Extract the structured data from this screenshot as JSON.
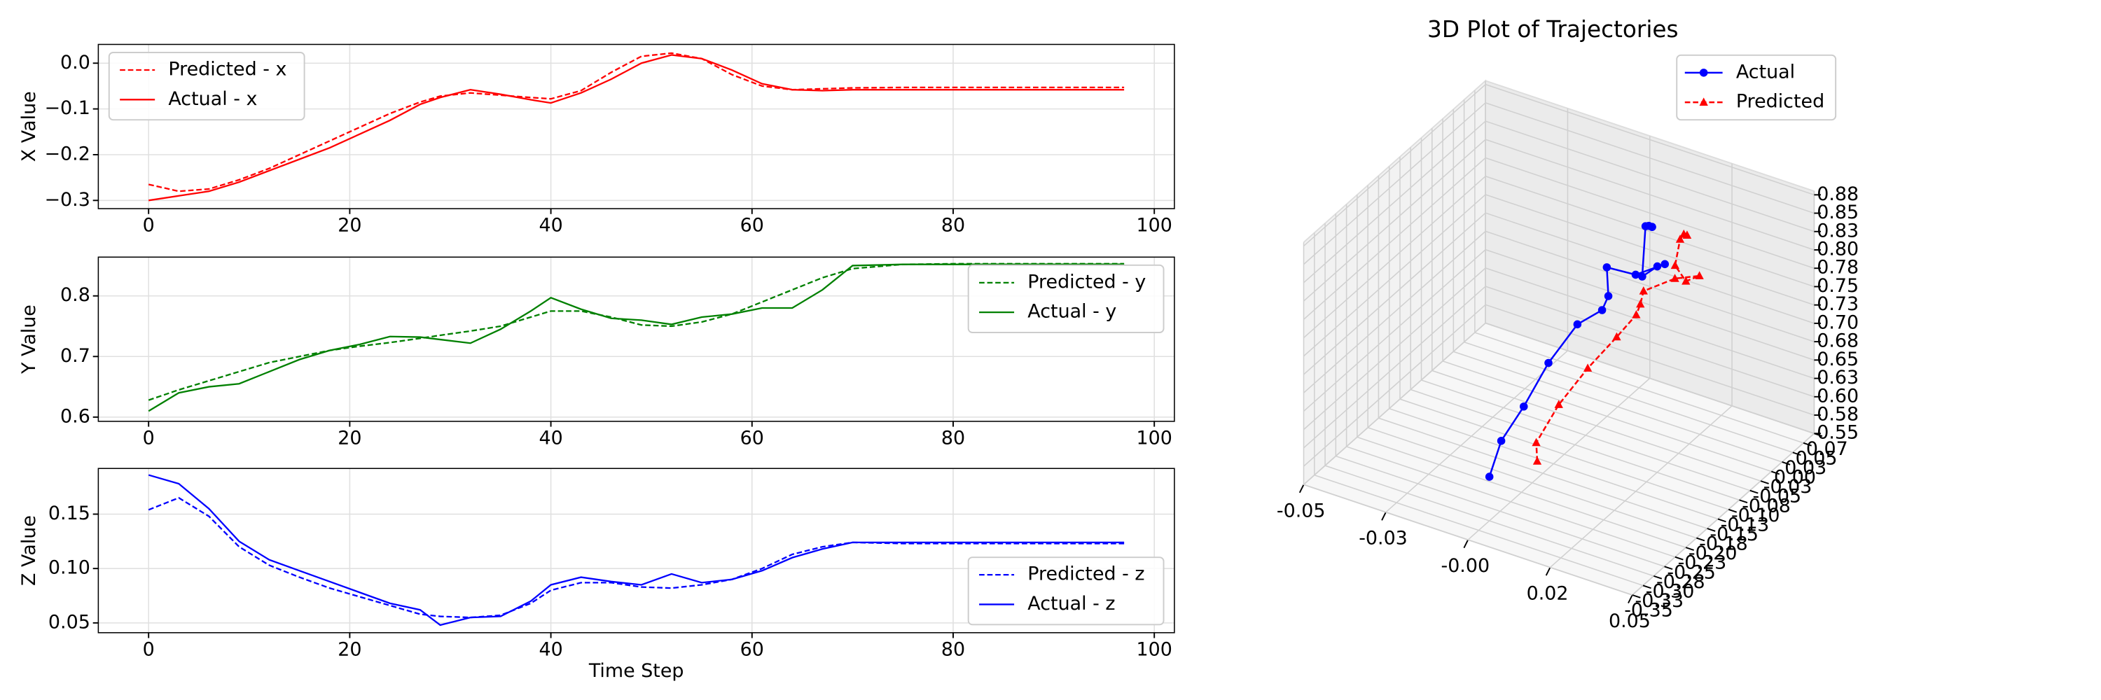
{
  "chart_data": [
    {
      "type": "line",
      "ylabel": "X Value",
      "x": [
        0,
        3,
        6,
        9,
        12,
        15,
        18,
        21,
        24,
        27,
        29,
        32,
        35,
        38,
        40,
        43,
        46,
        49,
        52,
        55,
        58,
        61,
        64,
        67,
        70,
        75,
        80,
        85,
        90,
        97
      ],
      "series": [
        {
          "name": "Predicted - x",
          "color": "#ff0000",
          "linestyle": "dashed",
          "values": [
            -0.265,
            -0.28,
            -0.275,
            -0.255,
            -0.23,
            -0.2,
            -0.17,
            -0.14,
            -0.11,
            -0.085,
            -0.072,
            -0.065,
            -0.07,
            -0.075,
            -0.078,
            -0.06,
            -0.02,
            0.015,
            0.022,
            0.01,
            -0.025,
            -0.05,
            -0.058,
            -0.056,
            -0.054,
            -0.053,
            -0.053,
            -0.053,
            -0.053,
            -0.053
          ]
        },
        {
          "name": "Actual - x",
          "color": "#ff0000",
          "linestyle": "solid",
          "values": [
            -0.3,
            -0.29,
            -0.28,
            -0.26,
            -0.235,
            -0.21,
            -0.185,
            -0.155,
            -0.125,
            -0.09,
            -0.075,
            -0.058,
            -0.068,
            -0.08,
            -0.087,
            -0.065,
            -0.035,
            0.0,
            0.018,
            0.01,
            -0.015,
            -0.045,
            -0.058,
            -0.06,
            -0.058,
            -0.058,
            -0.058,
            -0.058,
            -0.058,
            -0.058
          ]
        }
      ],
      "xlim": [
        -5,
        102
      ],
      "ylim": [
        -0.318,
        0.041
      ],
      "xticks": [
        0,
        20,
        40,
        60,
        80,
        100
      ],
      "yticks": [
        {
          "value": -0.3,
          "label": "−0.3"
        },
        {
          "value": -0.2,
          "label": "−0.2"
        },
        {
          "value": -0.1,
          "label": "−0.1"
        },
        {
          "value": 0,
          "label": "0.0"
        }
      ],
      "grid": true,
      "legend": "upper left"
    },
    {
      "type": "line",
      "ylabel": "Y Value",
      "x": [
        0,
        3,
        6,
        9,
        12,
        15,
        18,
        21,
        24,
        27,
        29,
        32,
        35,
        38,
        40,
        43,
        46,
        49,
        52,
        55,
        58,
        61,
        64,
        67,
        70,
        75,
        80,
        85,
        90,
        97
      ],
      "series": [
        {
          "name": "Predicted - y",
          "color": "#008000",
          "linestyle": "dashed",
          "values": [
            0.628,
            0.645,
            0.66,
            0.675,
            0.69,
            0.7,
            0.71,
            0.717,
            0.723,
            0.73,
            0.735,
            0.742,
            0.75,
            0.765,
            0.775,
            0.775,
            0.765,
            0.752,
            0.75,
            0.757,
            0.77,
            0.79,
            0.81,
            0.83,
            0.845,
            0.852,
            0.853,
            0.853,
            0.853,
            0.853
          ]
        },
        {
          "name": "Actual - y",
          "color": "#008000",
          "linestyle": "solid",
          "values": [
            0.61,
            0.64,
            0.65,
            0.655,
            0.675,
            0.695,
            0.71,
            0.72,
            0.733,
            0.732,
            0.728,
            0.722,
            0.745,
            0.775,
            0.797,
            0.778,
            0.763,
            0.76,
            0.753,
            0.765,
            0.77,
            0.78,
            0.78,
            0.81,
            0.85,
            0.852,
            0.852,
            0.852,
            0.852,
            0.852
          ]
        }
      ],
      "xlim": [
        -5,
        102
      ],
      "ylim": [
        0.593,
        0.864
      ],
      "xticks": [
        0,
        20,
        40,
        60,
        80,
        100
      ],
      "yticks": [
        0.6,
        0.7,
        0.8
      ],
      "grid": true,
      "legend": "upper right"
    },
    {
      "type": "line",
      "ylabel": "Z Value",
      "xlabel": "Time Step",
      "x": [
        0,
        3,
        6,
        9,
        12,
        15,
        18,
        21,
        24,
        27,
        29,
        32,
        35,
        38,
        40,
        43,
        46,
        49,
        52,
        55,
        58,
        61,
        64,
        67,
        70,
        75,
        80,
        85,
        90,
        97
      ],
      "series": [
        {
          "name": "Predicted - z",
          "color": "#0000ff",
          "linestyle": "dashed",
          "values": [
            0.154,
            0.165,
            0.148,
            0.12,
            0.103,
            0.092,
            0.082,
            0.074,
            0.066,
            0.058,
            0.056,
            0.055,
            0.057,
            0.068,
            0.08,
            0.087,
            0.087,
            0.083,
            0.082,
            0.085,
            0.09,
            0.1,
            0.113,
            0.12,
            0.124,
            0.123,
            0.123,
            0.123,
            0.123,
            0.123
          ]
        },
        {
          "name": "Actual - z",
          "color": "#0000ff",
          "linestyle": "solid",
          "values": [
            0.186,
            0.178,
            0.155,
            0.125,
            0.108,
            0.098,
            0.088,
            0.078,
            0.068,
            0.062,
            0.048,
            0.055,
            0.056,
            0.07,
            0.085,
            0.092,
            0.088,
            0.085,
            0.095,
            0.087,
            0.09,
            0.098,
            0.11,
            0.118,
            0.124,
            0.124,
            0.124,
            0.124,
            0.124,
            0.124
          ]
        }
      ],
      "xlim": [
        -5,
        102
      ],
      "ylim": [
        0.041,
        0.192
      ],
      "xticks": [
        0,
        20,
        40,
        60,
        80,
        100
      ],
      "yticks": [
        0.05,
        {
          "value": 0.1,
          "label": "0.10"
        },
        0.15
      ],
      "grid": true,
      "legend": "lower right"
    },
    {
      "type": "scatter3d",
      "title": "3D Plot of Trajectories",
      "series": [
        {
          "name": "Actual",
          "color": "#0000ff",
          "marker": "circle",
          "linestyle": "solid",
          "x": [
            0.0,
            0.001,
            0.002,
            0.003,
            0.004,
            0.005,
            0.006,
            0.008,
            0.01,
            0.012,
            0.014,
            0.015,
            0.016,
            0.017,
            0.018,
            0.018
          ],
          "y": [
            -0.3,
            -0.28,
            -0.235,
            -0.185,
            -0.125,
            -0.075,
            -0.068,
            -0.087,
            -0.035,
            0.018,
            -0.015,
            -0.058,
            -0.058,
            -0.058,
            -0.058,
            -0.058
          ],
          "z": [
            0.61,
            0.65,
            0.675,
            0.71,
            0.733,
            0.728,
            0.745,
            0.797,
            0.763,
            0.753,
            0.77,
            0.78,
            0.85,
            0.852,
            0.852,
            0.852
          ]
        },
        {
          "name": "Predicted",
          "color": "#ff0000",
          "marker": "triangle",
          "linestyle": "dashed",
          "x": [
            0.01,
            0.011,
            0.012,
            0.013,
            0.014,
            0.015,
            0.016,
            0.018,
            0.02,
            0.022,
            0.024,
            0.025,
            0.026,
            0.027,
            0.028,
            0.028
          ],
          "y": [
            -0.265,
            -0.275,
            -0.23,
            -0.17,
            -0.11,
            -0.072,
            -0.07,
            -0.078,
            -0.02,
            0.022,
            -0.025,
            -0.058,
            -0.054,
            -0.053,
            -0.053,
            -0.053
          ],
          "z": [
            0.628,
            0.66,
            0.69,
            0.71,
            0.723,
            0.735,
            0.75,
            0.775,
            0.765,
            0.75,
            0.77,
            0.81,
            0.845,
            0.853,
            0.853,
            0.853
          ]
        }
      ],
      "xlim": [
        -0.05,
        0.05
      ],
      "ylim": [
        -0.35,
        0.075
      ],
      "zlim": [
        0.55,
        0.88
      ],
      "xticks": [
        -0.05,
        {
          "value": -0.025,
          "label": "-0.03"
        },
        {
          "value": 0,
          "label": "-0.00"
        },
        {
          "value": 0.025,
          "label": "0.02"
        },
        0.05
      ],
      "yticks": [
        {
          "value": 0.075,
          "label": "0.07"
        },
        0.05,
        {
          "value": 0.025,
          "label": "0.03"
        },
        {
          "value": 0,
          "label": "0.00"
        },
        {
          "value": -0.025,
          "label": "-0.03"
        },
        -0.05,
        {
          "value": -0.075,
          "label": "-0.08"
        },
        {
          "value": -0.1,
          "label": "-0.10"
        },
        {
          "value": -0.125,
          "label": "-0.13"
        },
        -0.15,
        {
          "value": -0.175,
          "label": "-0.18"
        },
        {
          "value": -0.2,
          "label": "-0.20"
        },
        {
          "value": -0.225,
          "label": "-0.23"
        },
        -0.25,
        {
          "value": -0.275,
          "label": "-0.28"
        },
        {
          "value": -0.3,
          "label": "-0.30"
        },
        {
          "value": -0.325,
          "label": "-0.33"
        },
        -0.35
      ],
      "zticks": [
        0.55,
        {
          "value": 0.575,
          "label": "0.58"
        },
        {
          "value": 0.6,
          "label": "0.60"
        },
        {
          "value": 0.625,
          "label": "0.63"
        },
        0.65,
        {
          "value": 0.675,
          "label": "0.68"
        },
        {
          "value": 0.7,
          "label": "0.70"
        },
        {
          "value": 0.725,
          "label": "0.73"
        },
        0.75,
        {
          "value": 0.775,
          "label": "0.78"
        },
        {
          "value": 0.8,
          "label": "0.80"
        },
        {
          "value": 0.825,
          "label": "0.83"
        },
        0.85,
        {
          "value": 0.875,
          "label": "0.88"
        }
      ],
      "grid": true,
      "legend": "upper right"
    }
  ]
}
